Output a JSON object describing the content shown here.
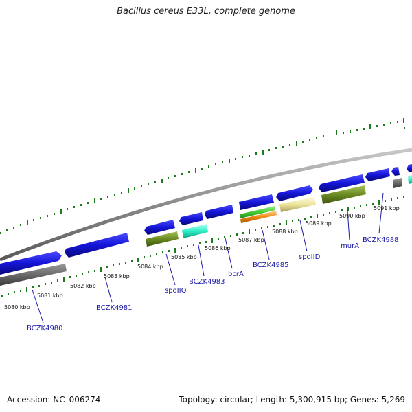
{
  "title": "Bacillus cereus E33L, complete genome",
  "footer": {
    "accession": "Accession: NC_006274",
    "summary": "Topology: circular; Length: 5,300,915 bp; Genes: 5,269"
  },
  "colors": {
    "cds": "#1515cc",
    "backbone": "#8a8a8a",
    "tick": "#1e7a1e",
    "label": "#1a1aa8",
    "olive": "#6b8a22",
    "cyan": "#2ef0c8",
    "green": "#44cc33",
    "orange": "#ee8811",
    "khaki": "#ece39a",
    "grey": "#707070"
  },
  "position_labels": [
    {
      "text": "5080 kbp"
    },
    {
      "text": "5081 kbp"
    },
    {
      "text": "5082 kbp"
    },
    {
      "text": "5083 kbp"
    },
    {
      "text": "5084 kbp"
    },
    {
      "text": "5085 kbp"
    },
    {
      "text": "5086 kbp"
    },
    {
      "text": "5087 kbp"
    },
    {
      "text": "5088 kbp"
    },
    {
      "text": "5089 kbp"
    },
    {
      "text": "5090 kbp"
    },
    {
      "text": "5091 kbp"
    }
  ],
  "gene_labels": [
    {
      "text": "BCZK4980"
    },
    {
      "text": "BCZK4981"
    },
    {
      "text": "spoIIQ"
    },
    {
      "text": "BCZK4983"
    },
    {
      "text": "bcrA"
    },
    {
      "text": "BCZK4985"
    },
    {
      "text": "spoIID"
    },
    {
      "text": "murA"
    },
    {
      "text": "BCZK4988"
    }
  ]
}
